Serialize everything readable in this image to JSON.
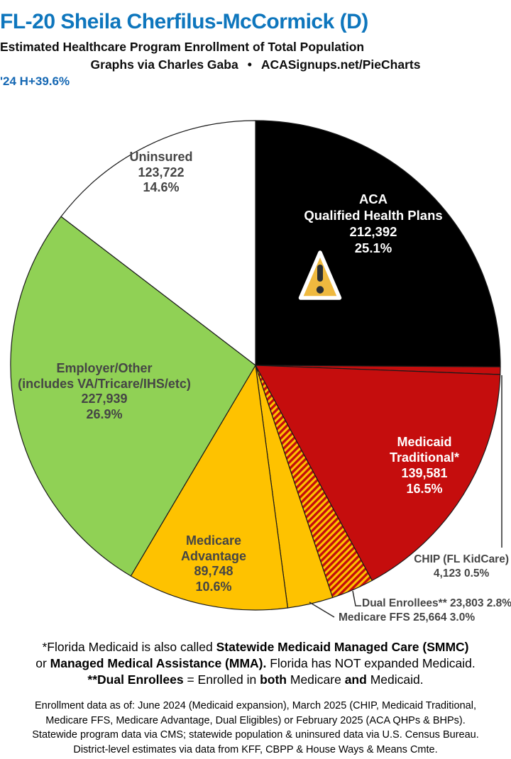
{
  "header": {
    "title": "FL-20 Sheila Cherfilus-McCormick (D)",
    "subtitle": "Estimated Healthcare Program Enrollment of Total Population",
    "byline_left": "Graphs via Charles Gaba",
    "byline_bullet": "•",
    "byline_right": "ACASignups.net/PieCharts",
    "stat_line": "'24 H+39.6%",
    "title_color": "#0e76bd",
    "stat_color": "#1467b3"
  },
  "chart_data": {
    "type": "pie",
    "units": "people",
    "clockwise": true,
    "start_angle": "12 o'clock",
    "outline_color": "#1a1a1a",
    "legend_position": "labels on slices with leader lines for small slices",
    "slices": [
      {
        "id": "aca",
        "name": "ACA Qualified Health Plans",
        "value": 212392,
        "pct": 25.1,
        "color": "#000000"
      },
      {
        "id": "chip",
        "name": "CHIP (FL KidCare)",
        "value": 4123,
        "pct": 0.5,
        "color": "#c50d0d"
      },
      {
        "id": "medicaid",
        "name": "Medicaid Traditional*",
        "value": 139581,
        "pct": 16.5,
        "color": "#c50d0d"
      },
      {
        "id": "dual",
        "name": "Dual Enrollees**",
        "value": 23803,
        "pct": 2.8,
        "color": "#fec200",
        "hatch": true,
        "hatch_color": "#c50d0d"
      },
      {
        "id": "medicare-ffs",
        "name": "Medicare FFS",
        "value": 25664,
        "pct": 3.0,
        "color": "#fec200"
      },
      {
        "id": "medicare-advantage",
        "name": "Medicare Advantage",
        "value": 89748,
        "pct": 10.6,
        "color": "#fec200"
      },
      {
        "id": "employer",
        "name": "Employer/Other (includes VA/Tricare/IHS/etc)",
        "value": 227939,
        "pct": 26.9,
        "color": "#90d155"
      },
      {
        "id": "uninsured",
        "name": "Uninsured",
        "value": 123722,
        "pct": 14.6,
        "color": "#ffffff"
      }
    ]
  },
  "labels": {
    "aca": [
      "ACA",
      "Qualified Health Plans",
      "212,392",
      "25.1%"
    ],
    "uninsured": [
      "Uninsured",
      "123,722",
      "14.6%"
    ],
    "employer": [
      "Employer/Other",
      "(includes VA/Tricare/IHS/etc)",
      "227,939",
      "26.9%"
    ],
    "medicare_advantage": [
      "Medicare",
      "Advantage",
      "89,748",
      "10.6%"
    ],
    "medicaid": [
      "Medicaid",
      "Traditional*",
      "139,581",
      "16.5%"
    ],
    "chip": [
      "CHIP (FL KidCare)",
      "4,123 0.5%"
    ],
    "dual": "Dual Enrollees** 23,803 2.8%",
    "medicare_ffs": "Medicare FFS 25,664 3.0%"
  },
  "footnotes": {
    "medicaid_note": [
      [
        {
          "t": "*Florida Medicaid is also called ",
          "b": 0
        },
        {
          "t": "Statewide Medicaid Managed Care (SMMC)",
          "b": 1
        }
      ],
      [
        {
          "t": "or ",
          "b": 0
        },
        {
          "t": "Managed Medical Assistance (MMA).",
          "b": 1
        },
        {
          "t": " Florida has NOT expanded Medicaid.",
          "b": 0
        }
      ],
      [
        {
          "t": "**Dual Enrollees",
          "b": 1
        },
        {
          "t": " = Enrolled in ",
          "b": 0
        },
        {
          "t": "both",
          "b": 1
        },
        {
          "t": " Medicare ",
          "b": 0
        },
        {
          "t": "and",
          "b": 1
        },
        {
          "t": " Medicaid.",
          "b": 0
        }
      ]
    ],
    "source_note": [
      "Enrollment data as of: June 2024 (Medicaid expansion), March 2025 (CHIP, Medicaid Traditional,",
      "Medicare FFS, Medicare Advantage, Dual Eligibles) or February 2025 (ACA QHPs & BHPs).",
      "Statewide program data via CMS; statewide population & uninsured data via U.S. Census Bureau.",
      "District-level estimates via data from KFF, CBPP & House Ways & Means Cmte."
    ]
  },
  "icons": {
    "warning_triangle": {
      "fill": "#efb93f",
      "border": "#ffffff",
      "glyph_color": "#2b2f33"
    }
  }
}
